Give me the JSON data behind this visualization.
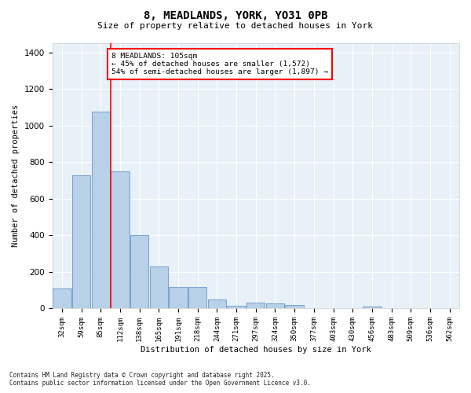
{
  "title1": "8, MEADLANDS, YORK, YO31 0PB",
  "title2": "Size of property relative to detached houses in York",
  "xlabel": "Distribution of detached houses by size in York",
  "ylabel": "Number of detached properties",
  "categories": [
    "32sqm",
    "59sqm",
    "85sqm",
    "112sqm",
    "138sqm",
    "165sqm",
    "191sqm",
    "218sqm",
    "244sqm",
    "271sqm",
    "297sqm",
    "324sqm",
    "350sqm",
    "377sqm",
    "403sqm",
    "430sqm",
    "456sqm",
    "483sqm",
    "509sqm",
    "536sqm",
    "562sqm"
  ],
  "values": [
    110,
    730,
    1075,
    750,
    400,
    230,
    120,
    120,
    48,
    15,
    30,
    28,
    20,
    0,
    0,
    0,
    12,
    0,
    0,
    0,
    0
  ],
  "bar_color": "#b8d0e8",
  "bar_edge_color": "#6699cc",
  "vline_color": "red",
  "vline_pos": 2.5,
  "annotation_text": "8 MEADLANDS: 105sqm\n← 45% of detached houses are smaller (1,572)\n54% of semi-detached houses are larger (1,897) →",
  "annotation_box_facecolor": "white",
  "annotation_box_edgecolor": "red",
  "ylim": [
    0,
    1450
  ],
  "yticks": [
    0,
    200,
    400,
    600,
    800,
    1000,
    1200,
    1400
  ],
  "bg_color": "#e8f0f8",
  "grid_color": "white",
  "footnote": "Contains HM Land Registry data © Crown copyright and database right 2025.\nContains public sector information licensed under the Open Government Licence v3.0."
}
